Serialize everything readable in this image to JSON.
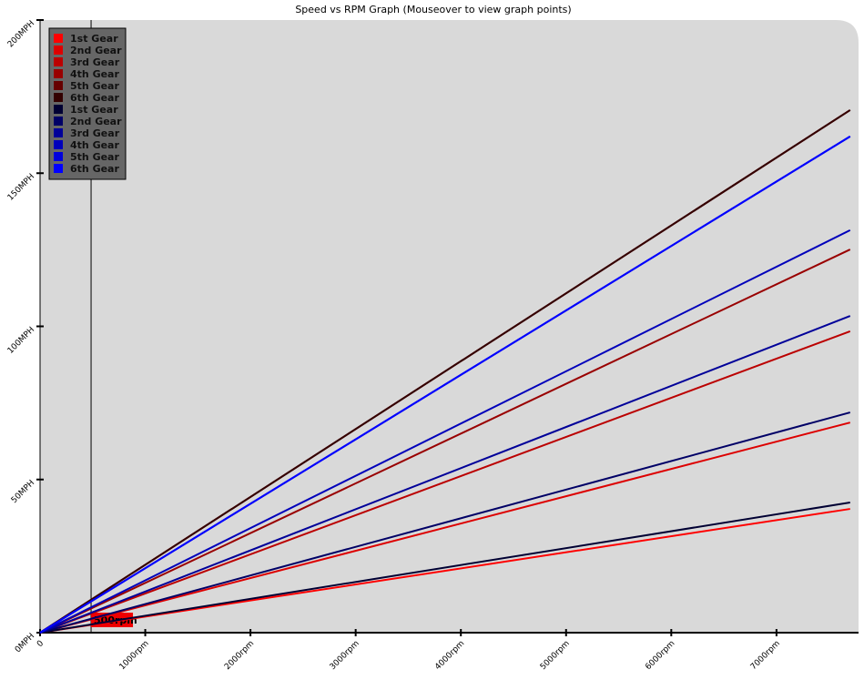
{
  "chart_data": {
    "type": "line",
    "title": "Speed vs RPM Graph (Mouseover to view graph points)",
    "xlim": [
      0,
      7780
    ],
    "ylim": [
      0,
      200
    ],
    "xticks": [
      0,
      {
        "value": 1000,
        "label": "1000rpm"
      },
      {
        "value": 2000,
        "label": "2000rpm"
      },
      {
        "value": 3000,
        "label": "3000rpm"
      },
      {
        "value": 4000,
        "label": "4000rpm"
      },
      {
        "value": 5000,
        "label": "5000rpm"
      },
      {
        "value": 6000,
        "label": "6000rpm"
      },
      {
        "value": 7000,
        "label": "7000rpm"
      }
    ],
    "yticks": [
      {
        "value": 0,
        "label": "0MPH"
      },
      {
        "value": 50,
        "label": "50MPH"
      },
      {
        "value": 100,
        "label": "100MPH"
      },
      {
        "value": 150,
        "label": "150MPH"
      },
      {
        "value": 200,
        "label": "200MPH"
      }
    ],
    "cursor": {
      "value": 485,
      "label": "500rpm"
    },
    "legend": "top-left",
    "series": [
      {
        "name": "1st Gear",
        "color": "#ff0000",
        "x": [
          0,
          7700
        ],
        "values": [
          0,
          40.4
        ]
      },
      {
        "name": "2nd Gear",
        "color": "#dd0000",
        "x": [
          0,
          7700
        ],
        "values": [
          0,
          68.6
        ]
      },
      {
        "name": "3rd Gear",
        "color": "#bb0000",
        "x": [
          0,
          7700
        ],
        "values": [
          0,
          98.4
        ]
      },
      {
        "name": "4th Gear",
        "color": "#990000",
        "x": [
          0,
          7700
        ],
        "values": [
          0,
          125.1
        ]
      },
      {
        "name": "5th Gear",
        "color": "#660000",
        "x": [
          0,
          7700
        ],
        "values": [
          0,
          170.6
        ]
      },
      {
        "name": "6th Gear",
        "color": "#330000",
        "x": [
          0,
          7700
        ],
        "values": [
          0,
          170.6
        ]
      },
      {
        "name": "1st Gear",
        "color": "#000033",
        "x": [
          0,
          7700
        ],
        "values": [
          0,
          42.5
        ]
      },
      {
        "name": "2nd Gear",
        "color": "#000066",
        "x": [
          0,
          7700
        ],
        "values": [
          0,
          71.9
        ]
      },
      {
        "name": "3rd Gear",
        "color": "#000099",
        "x": [
          0,
          7700
        ],
        "values": [
          0,
          103.4
        ]
      },
      {
        "name": "4th Gear",
        "color": "#0000bb",
        "x": [
          0,
          7700
        ],
        "values": [
          0,
          131.4
        ]
      },
      {
        "name": "5th Gear",
        "color": "#0000dd",
        "x": [
          0,
          7700
        ],
        "values": [
          0,
          162
        ]
      },
      {
        "name": "6th Gear",
        "color": "#0000ff",
        "x": [
          0,
          7700
        ],
        "values": [
          0,
          162
        ]
      }
    ]
  }
}
